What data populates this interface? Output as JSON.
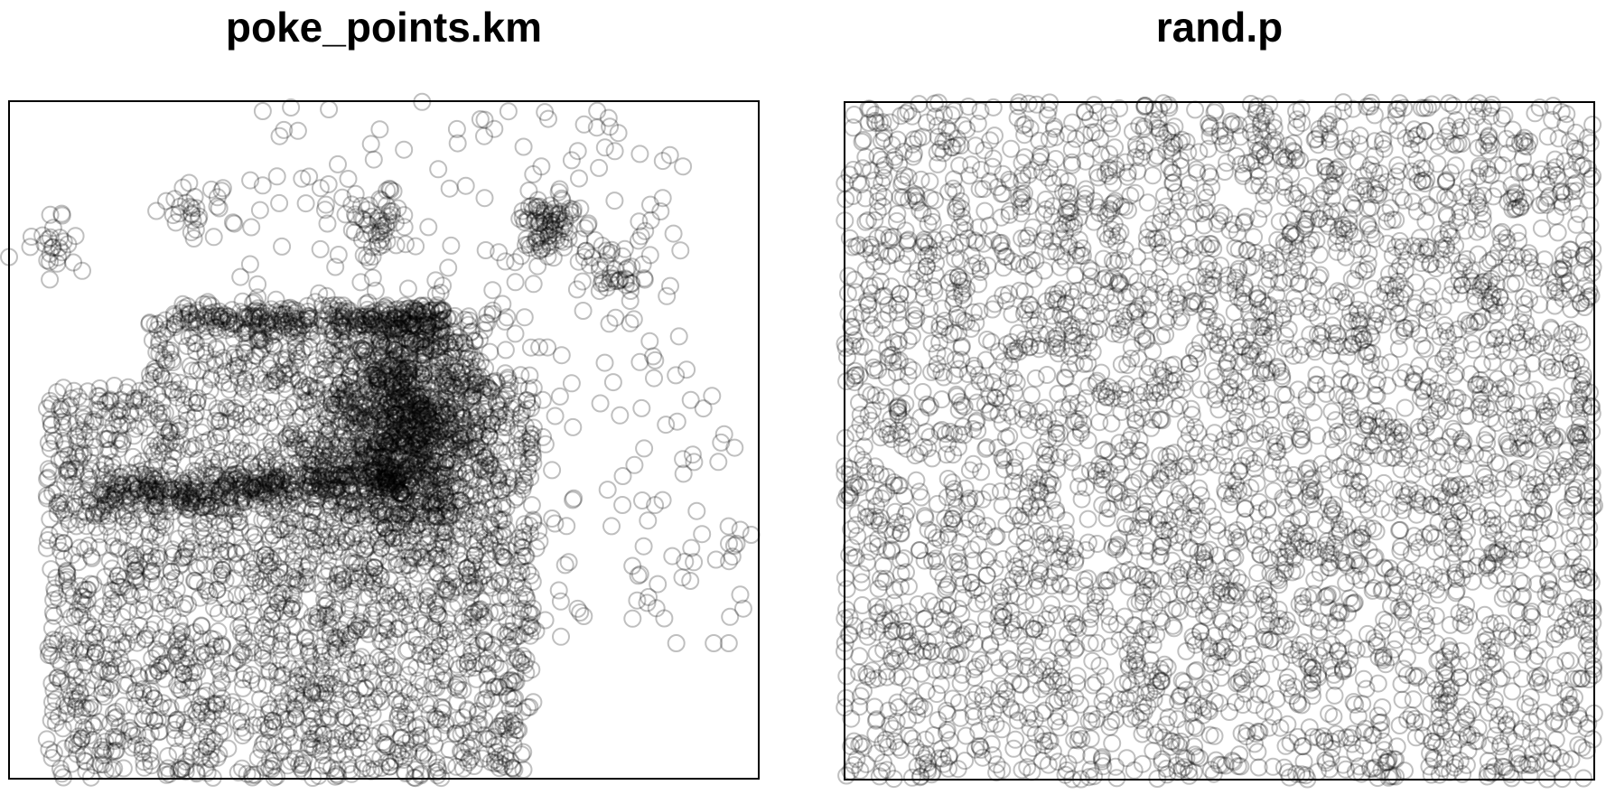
{
  "chart_data": [
    {
      "type": "scatter",
      "title": "poke_points.km",
      "xlabel": "",
      "ylabel": "",
      "marker": "open-circle",
      "marker_alpha": 0.25,
      "grid": false,
      "axes_shown": false,
      "frame": "box",
      "xlim": [
        0,
        1
      ],
      "ylim": [
        0,
        1
      ],
      "distribution_note": "",
      "points": []
    },
    {
      "type": "scatter",
      "title": "rand.p",
      "xlabel": "",
      "ylabel": "",
      "marker": "open-circle",
      "marker_alpha": 0.25,
      "grid": false,
      "axes_shown": false,
      "frame": "box",
      "xlim": [
        0,
        1
      ],
      "ylim": [
        0,
        1
      ],
      "points": []
    }
  ],
  "colors": {
    "marker": "#000000",
    "frame": "#000000",
    "background": "#ffffff"
  }
}
